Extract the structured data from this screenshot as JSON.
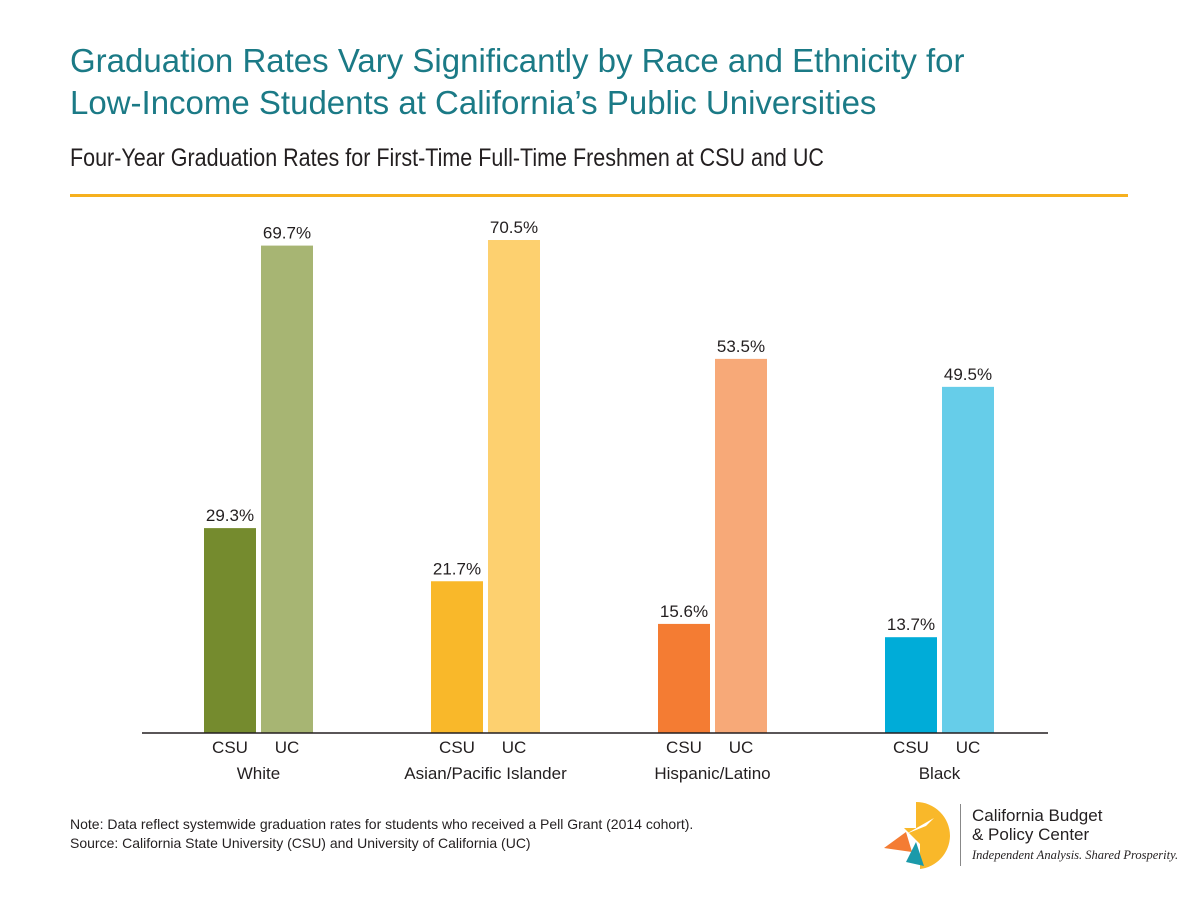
{
  "header": {
    "title_line1": "Graduation Rates Vary Significantly by Race and Ethnicity for",
    "title_line2": "Low-Income Students at California’s Public Universities",
    "subtitle": "Four-Year Graduation Rates for First-Time Full-Time Freshmen at CSU and UC"
  },
  "colors": {
    "title": "#1b7a86",
    "rule": "#f6b01e"
  },
  "chart_data": {
    "type": "bar",
    "title": "Graduation Rates Vary Significantly by Race and Ethnicity for Low-Income Students at California’s Public Universities",
    "subtitle": "Four-Year Graduation Rates for First-Time Full-Time Freshmen at CSU and UC",
    "xlabel": "",
    "ylabel": "",
    "ylim": [
      0,
      75
    ],
    "grid": false,
    "value_suffix": "%",
    "sub_labels": [
      "CSU",
      "UC"
    ],
    "groups": [
      {
        "category": "White",
        "values": [
          29.3,
          69.7
        ],
        "labels": [
          "29.3%",
          "69.7%"
        ],
        "colors": [
          "#758b2e",
          "#a7b573"
        ]
      },
      {
        "category": "Asian/Pacific Islander",
        "values": [
          21.7,
          70.5
        ],
        "labels": [
          "21.7%",
          "70.5%"
        ],
        "colors": [
          "#f9b82a",
          "#fdd06f"
        ]
      },
      {
        "category": "Hispanic/Latino",
        "values": [
          15.6,
          53.5
        ],
        "labels": [
          "15.6%",
          "53.5%"
        ],
        "colors": [
          "#f47c33",
          "#f7a978"
        ]
      },
      {
        "category": "Black",
        "values": [
          13.7,
          49.5
        ],
        "labels": [
          "13.7%",
          "49.5%"
        ],
        "colors": [
          "#00acd8",
          "#66cde9"
        ]
      }
    ]
  },
  "footer": {
    "note": "Note: Data reflect systemwide graduation rates for students who received a Pell Grant (2014 cohort).",
    "source": "Source: California State University (CSU) and University of California (UC)"
  },
  "logo": {
    "name_line1": "California Budget",
    "name_line2": "& Policy Center",
    "tagline": "Independent Analysis. Shared Prosperity.",
    "icon": "cbpc-logo-mark"
  }
}
